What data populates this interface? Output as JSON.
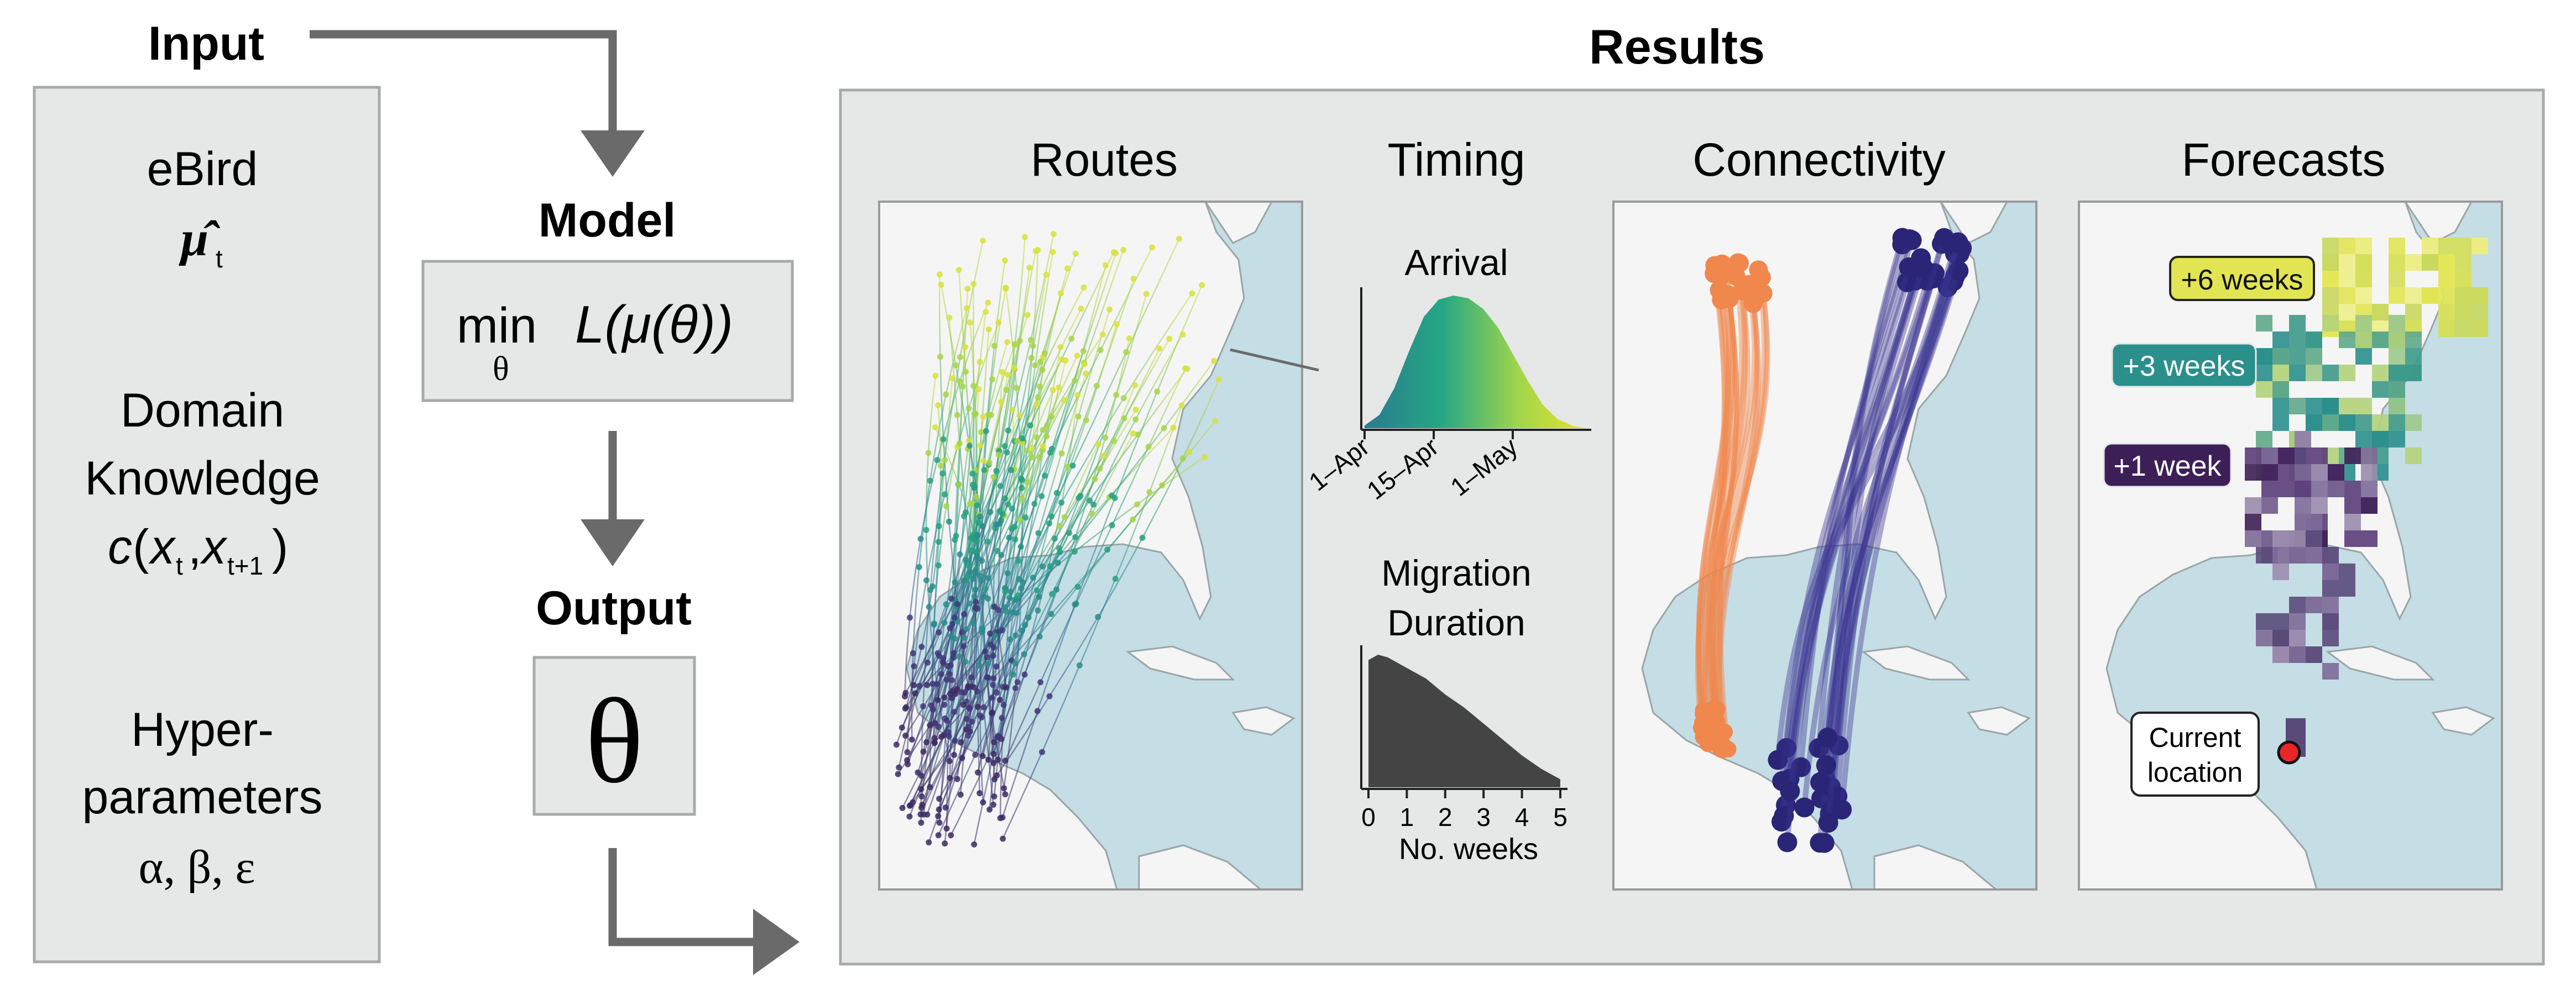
{
  "input": {
    "heading": "Input",
    "ebird_label": "eBird",
    "ebird_symbol": "μ̂",
    "ebird_subscript": "t",
    "domain_line1": "Domain",
    "domain_line2": "Knowledge",
    "cost_c": "c",
    "cost_paren_open": "(",
    "cost_x1": "x",
    "cost_sub1": "t",
    "cost_comma": ",",
    "cost_x2": "x",
    "cost_sub2": "t+1",
    "cost_paren_close": ")",
    "hyper_line1": "Hyper-",
    "hyper_line2": "parameters",
    "hyper_line3": "α, β, ε"
  },
  "model": {
    "heading": "Model",
    "min_text": "min",
    "min_sub": "θ",
    "loss_text": "L(μ(θ))"
  },
  "output": {
    "heading": "Output",
    "symbol": "θ"
  },
  "results": {
    "heading": "Results",
    "routes_title": "Routes",
    "timing_title": "Timing",
    "connectivity_title": "Connectivity",
    "forecasts_title": "Forecasts",
    "arrival_title": "Arrival",
    "arrival_ticks": [
      "1–Apr",
      "15–Apr",
      "1–May"
    ],
    "duration_title_line1": "Migration",
    "duration_title_line2": "Duration",
    "duration_xlabel": "No. weeks",
    "duration_ticks": [
      "0",
      "1",
      "2",
      "3",
      "4",
      "5"
    ],
    "forecast_labels": [
      "+6 weeks",
      "+3 weeks",
      "+1 week"
    ],
    "current_location_line1": "Current",
    "current_location_line2": "location"
  },
  "colors": {
    "panel_fill": "#e6e7e7",
    "panel_stroke": "#a8a9a9",
    "ocean": "#c5dde5",
    "land": "#f5f5f5",
    "arrow": "#6a6a6a",
    "connectivity_orange": "#f0874d",
    "connectivity_navy": "#2a2577",
    "week6": "#e2e553",
    "week3": "#2b8f8c",
    "week1": "#3d1f58",
    "current_dot": "#e8262a"
  },
  "chart_data": [
    {
      "type": "area",
      "title": "Arrival",
      "x": [
        "1–Apr",
        "15–Apr",
        "1–May"
      ],
      "x_domain_days": [
        0,
        45
      ],
      "series": [
        {
          "x": [
            0,
            3,
            6,
            9,
            12,
            15,
            18,
            21,
            24,
            27,
            30,
            33,
            36,
            39,
            42,
            45
          ],
          "values": [
            0.02,
            0.1,
            0.3,
            0.58,
            0.84,
            0.97,
            1.0,
            0.98,
            0.9,
            0.76,
            0.56,
            0.36,
            0.18,
            0.07,
            0.02,
            0.0
          ]
        }
      ],
      "gradient": [
        "#2a7b8e",
        "#25a784",
        "#a3d64a",
        "#e5e22c"
      ]
    },
    {
      "type": "area",
      "title": "Migration Duration",
      "xlabel": "No. weeks",
      "x": [
        0,
        0.25,
        0.5,
        1,
        1.5,
        2,
        2.5,
        3,
        3.5,
        4,
        4.5,
        5
      ],
      "xlim": [
        0,
        5
      ],
      "values": [
        0.96,
        1.0,
        0.98,
        0.9,
        0.82,
        0.7,
        0.6,
        0.48,
        0.36,
        0.24,
        0.14,
        0.06
      ],
      "fill": "#444444"
    }
  ]
}
